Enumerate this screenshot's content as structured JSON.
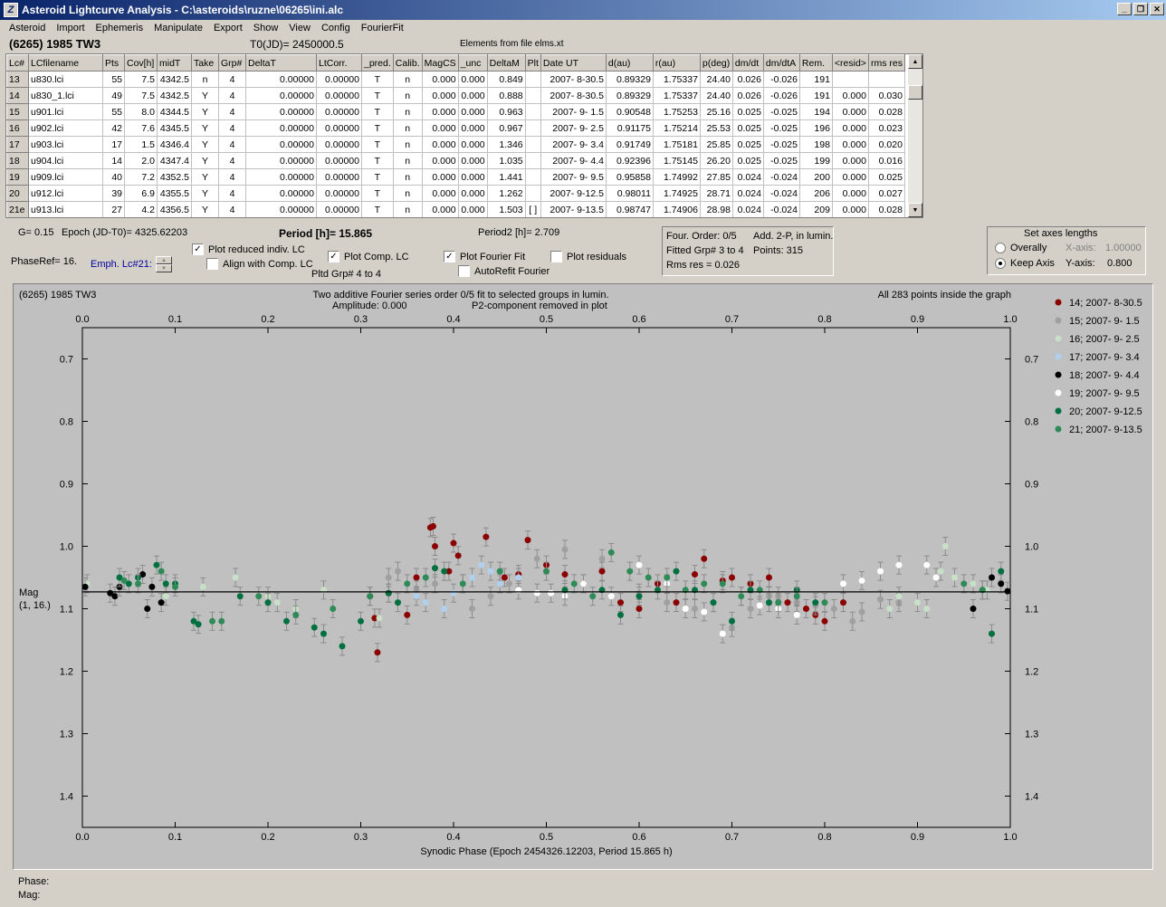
{
  "window": {
    "title": "Asteroid Lightcurve Analysis - C:\\asteroids\\ruzne\\06265\\ini.alc",
    "icon_text": "Z"
  },
  "menu": [
    "Asteroid",
    "Import",
    "Ephemeris",
    "Manipulate",
    "Export",
    "Show",
    "View",
    "Config",
    "FourierFit"
  ],
  "header": {
    "object": "(6265) 1985 TW3",
    "t0": "T0(JD)= 2450000.5",
    "elements": "Elements from file elms.xt"
  },
  "table": {
    "columns": [
      "Lc#",
      "LCfilename",
      "Pts",
      "Cov[h]",
      "midT",
      "Take",
      "Grp#",
      "DeltaT",
      "LtCorr.",
      "_pred.",
      "Calib.",
      "MagCS",
      "_unc",
      "DeltaM",
      "Plt",
      "Date UT",
      "d(au)",
      "r(au)",
      "p(deg)",
      "dm/dt",
      "dm/dtA",
      "Rem.",
      "<resid>",
      "rms res"
    ],
    "rows": [
      [
        "13",
        "u830.lci",
        "55",
        "7.5",
        "4342.5",
        "n",
        "4",
        "0.00000",
        "0.00000",
        "T",
        "n",
        "0.000",
        "0.000",
        "0.849",
        "",
        "2007- 8-30.5",
        "0.89329",
        "1.75337",
        "24.40",
        "0.026",
        "-0.026",
        "191",
        "",
        ""
      ],
      [
        "14",
        "u830_1.lci",
        "49",
        "7.5",
        "4342.5",
        "Y",
        "4",
        "0.00000",
        "0.00000",
        "T",
        "n",
        "0.000",
        "0.000",
        "0.888",
        "",
        "2007- 8-30.5",
        "0.89329",
        "1.75337",
        "24.40",
        "0.026",
        "-0.026",
        "191",
        "0.000",
        "0.030"
      ],
      [
        "15",
        "u901.lci",
        "55",
        "8.0",
        "4344.5",
        "Y",
        "4",
        "0.00000",
        "0.00000",
        "T",
        "n",
        "0.000",
        "0.000",
        "0.963",
        "",
        "2007- 9- 1.5",
        "0.90548",
        "1.75253",
        "25.16",
        "0.025",
        "-0.025",
        "194",
        "0.000",
        "0.028"
      ],
      [
        "16",
        "u902.lci",
        "42",
        "7.6",
        "4345.5",
        "Y",
        "4",
        "0.00000",
        "0.00000",
        "T",
        "n",
        "0.000",
        "0.000",
        "0.967",
        "",
        "2007- 9- 2.5",
        "0.91175",
        "1.75214",
        "25.53",
        "0.025",
        "-0.025",
        "196",
        "0.000",
        "0.023"
      ],
      [
        "17",
        "u903.lci",
        "17",
        "1.5",
        "4346.4",
        "Y",
        "4",
        "0.00000",
        "0.00000",
        "T",
        "n",
        "0.000",
        "0.000",
        "1.346",
        "",
        "2007- 9- 3.4",
        "0.91749",
        "1.75181",
        "25.85",
        "0.025",
        "-0.025",
        "198",
        "0.000",
        "0.020"
      ],
      [
        "18",
        "u904.lci",
        "14",
        "2.0",
        "4347.4",
        "Y",
        "4",
        "0.00000",
        "0.00000",
        "T",
        "n",
        "0.000",
        "0.000",
        "1.035",
        "",
        "2007- 9- 4.4",
        "0.92396",
        "1.75145",
        "26.20",
        "0.025",
        "-0.025",
        "199",
        "0.000",
        "0.016"
      ],
      [
        "19",
        "u909.lci",
        "40",
        "7.2",
        "4352.5",
        "Y",
        "4",
        "0.00000",
        "0.00000",
        "T",
        "n",
        "0.000",
        "0.000",
        "1.441",
        "",
        "2007- 9- 9.5",
        "0.95858",
        "1.74992",
        "27.85",
        "0.024",
        "-0.024",
        "200",
        "0.000",
        "0.025"
      ],
      [
        "20",
        "u912.lci",
        "39",
        "6.9",
        "4355.5",
        "Y",
        "4",
        "0.00000",
        "0.00000",
        "T",
        "n",
        "0.000",
        "0.000",
        "1.262",
        "",
        "2007- 9-12.5",
        "0.98011",
        "1.74925",
        "28.71",
        "0.024",
        "-0.024",
        "206",
        "0.000",
        "0.027"
      ],
      [
        "21e",
        "u913.lci",
        "27",
        "4.2",
        "4356.5",
        "Y",
        "4",
        "0.00000",
        "0.00000",
        "T",
        "n",
        "0.000",
        "0.000",
        "1.503",
        "[ ]",
        "2007- 9-13.5",
        "0.98747",
        "1.74906",
        "28.98",
        "0.024",
        "-0.024",
        "209",
        "0.000",
        "0.028"
      ]
    ]
  },
  "info": {
    "g": "G= 0.15",
    "epoch": "Epoch (JD-T0)= 4325.62203",
    "period": "Period [h]= 15.865",
    "period2": "Period2 [h]= 2.709",
    "phase_ref": "PhaseRef= 16.",
    "emph": "Emph. Lc#21:",
    "pltd_grp": "Pltd Grp#  4  to   4"
  },
  "checks": {
    "plot_reduced": {
      "label": "Plot reduced indiv. LC",
      "checked": true
    },
    "align_comp": {
      "label": "Align with Comp. LC",
      "checked": false
    },
    "plot_comp": {
      "label": "Plot Comp. LC",
      "checked": true
    },
    "plot_fourier": {
      "label": "Plot Fourier Fit",
      "checked": true
    },
    "plot_resid": {
      "label": "Plot residuals",
      "checked": false
    },
    "autorefit": {
      "label": "AutoRefit Fourier",
      "checked": false
    }
  },
  "fourier_panel": {
    "order": "Four. Order:  0/5",
    "add": "Add. 2-P, in lumin.",
    "fitted": "Fitted Grp# 3 to 4",
    "points": "Points: 315",
    "rms": "Rms res     = 0.026"
  },
  "axes_panel": {
    "title": "Set axes lengths",
    "overally": "Overally",
    "keep": "Keep Axis",
    "x_label": "X-axis:",
    "x_value": "1.00000",
    "y_label": "Y-axis:",
    "y_value": "0.800",
    "selected": "keep"
  },
  "plot": {
    "object": "(6265) 1985 TW3",
    "line1": "Two additive Fourier series order 0/5 fit to selected groups in lumin.",
    "amplitude": "Amplitude: 0.000",
    "p2": "P2-component removed in plot",
    "inside": "All 283 points inside the graph",
    "ylabel": "Mag",
    "ylabel2": "(1, 16.)",
    "xlabel": "Synodic Phase (Epoch 2454326.12203, Period 15.865 h)"
  },
  "status": {
    "phase": "Phase:",
    "mag": "Mag:"
  },
  "chart_data": {
    "type": "scatter",
    "xlabel": "Synodic Phase (Epoch 2454326.12203, Period 15.865 h)",
    "ylabel": "Mag",
    "xlim": [
      0.0,
      1.0
    ],
    "ylim": [
      1.45,
      0.65
    ],
    "x_ticks": [
      "0.0",
      "0.1",
      "0.2",
      "0.3",
      "0.4",
      "0.5",
      "0.6",
      "0.7",
      "0.8",
      "0.9",
      "1.0"
    ],
    "y_ticks": [
      "0.7",
      "0.8",
      "0.9",
      "1.0",
      "1.1",
      "1.2",
      "1.3",
      "1.4"
    ],
    "fit_line_mag": 1.073,
    "legend_position": "right",
    "series": [
      {
        "name": "14; 2007- 8-30.5",
        "color": "#8b0000",
        "points": [
          [
            0.31,
            1.08
          ],
          [
            0.315,
            1.115
          ],
          [
            0.318,
            1.17
          ],
          [
            0.33,
            1.075
          ],
          [
            0.35,
            1.11
          ],
          [
            0.36,
            1.05
          ],
          [
            0.375,
            0.97
          ],
          [
            0.378,
            0.968
          ],
          [
            0.38,
            1.0
          ],
          [
            0.395,
            1.04
          ],
          [
            0.4,
            0.995
          ],
          [
            0.405,
            1.015
          ],
          [
            0.435,
            0.985
          ],
          [
            0.455,
            1.05
          ],
          [
            0.47,
            1.045
          ],
          [
            0.48,
            0.99
          ],
          [
            0.5,
            1.03
          ],
          [
            0.52,
            1.045
          ],
          [
            0.54,
            1.06
          ],
          [
            0.56,
            1.04
          ],
          [
            0.58,
            1.09
          ],
          [
            0.6,
            1.1
          ],
          [
            0.62,
            1.06
          ],
          [
            0.64,
            1.09
          ],
          [
            0.66,
            1.045
          ],
          [
            0.67,
            1.02
          ],
          [
            0.69,
            1.055
          ],
          [
            0.7,
            1.05
          ],
          [
            0.72,
            1.06
          ],
          [
            0.74,
            1.05
          ],
          [
            0.76,
            1.09
          ],
          [
            0.78,
            1.1
          ],
          [
            0.79,
            1.11
          ],
          [
            0.8,
            1.12
          ],
          [
            0.82,
            1.09
          ]
        ]
      },
      {
        "name": "15; 2007- 9- 1.5",
        "color": "#a0a0a0",
        "points": [
          [
            0.33,
            1.05
          ],
          [
            0.34,
            1.04
          ],
          [
            0.36,
            1.07
          ],
          [
            0.38,
            1.06
          ],
          [
            0.42,
            1.1
          ],
          [
            0.44,
            1.08
          ],
          [
            0.46,
            1.06
          ],
          [
            0.49,
            1.02
          ],
          [
            0.52,
            1.005
          ],
          [
            0.56,
            1.02
          ],
          [
            0.6,
            1.075
          ],
          [
            0.63,
            1.09
          ],
          [
            0.66,
            1.1
          ],
          [
            0.68,
            1.09
          ],
          [
            0.7,
            1.13
          ],
          [
            0.72,
            1.1
          ],
          [
            0.74,
            1.08
          ],
          [
            0.75,
            1.08
          ],
          [
            0.77,
            1.09
          ],
          [
            0.79,
            1.095
          ],
          [
            0.81,
            1.1
          ],
          [
            0.83,
            1.12
          ],
          [
            0.84,
            1.105
          ],
          [
            0.86,
            1.085
          ],
          [
            0.88,
            1.09
          ]
        ]
      },
      {
        "name": "16; 2007- 9- 2.5",
        "color": "#c8e0c8",
        "points": [
          [
            0.005,
            1.06
          ],
          [
            0.09,
            1.08
          ],
          [
            0.13,
            1.065
          ],
          [
            0.165,
            1.05
          ],
          [
            0.2,
            1.08
          ],
          [
            0.21,
            1.09
          ],
          [
            0.23,
            1.1
          ],
          [
            0.26,
            1.07
          ],
          [
            0.32,
            1.115
          ],
          [
            0.87,
            1.1
          ],
          [
            0.88,
            1.08
          ],
          [
            0.9,
            1.09
          ],
          [
            0.91,
            1.1
          ],
          [
            0.925,
            1.04
          ],
          [
            0.93,
            1.0
          ],
          [
            0.94,
            1.05
          ],
          [
            0.96,
            1.06
          ],
          [
            0.975,
            1.07
          ]
        ]
      },
      {
        "name": "17; 2007- 9- 3.4",
        "color": "#b0d0ee",
        "points": [
          [
            0.36,
            1.08
          ],
          [
            0.37,
            1.09
          ],
          [
            0.39,
            1.1
          ],
          [
            0.4,
            1.075
          ],
          [
            0.41,
            1.06
          ],
          [
            0.42,
            1.05
          ],
          [
            0.43,
            1.03
          ],
          [
            0.44,
            1.04
          ],
          [
            0.45,
            1.06
          ],
          [
            0.47,
            1.05
          ]
        ]
      },
      {
        "name": "18; 2007- 9- 4.4",
        "color": "#000000",
        "points": [
          [
            0.003,
            1.065
          ],
          [
            0.03,
            1.075
          ],
          [
            0.035,
            1.08
          ],
          [
            0.04,
            1.065
          ],
          [
            0.065,
            1.045
          ],
          [
            0.07,
            1.1
          ],
          [
            0.075,
            1.065
          ],
          [
            0.085,
            1.09
          ],
          [
            0.96,
            1.1
          ],
          [
            0.97,
            1.07
          ],
          [
            0.98,
            1.05
          ],
          [
            0.99,
            1.06
          ],
          [
            0.997,
            1.072
          ]
        ]
      },
      {
        "name": "19; 2007- 9- 9.5",
        "color": "#ffffff",
        "points": [
          [
            0.47,
            1.07
          ],
          [
            0.49,
            1.075
          ],
          [
            0.505,
            1.075
          ],
          [
            0.52,
            1.08
          ],
          [
            0.54,
            1.06
          ],
          [
            0.57,
            1.08
          ],
          [
            0.6,
            1.03
          ],
          [
            0.63,
            1.06
          ],
          [
            0.65,
            1.1
          ],
          [
            0.67,
            1.105
          ],
          [
            0.69,
            1.14
          ],
          [
            0.71,
            1.08
          ],
          [
            0.73,
            1.095
          ],
          [
            0.75,
            1.1
          ],
          [
            0.77,
            1.11
          ],
          [
            0.82,
            1.06
          ],
          [
            0.84,
            1.055
          ],
          [
            0.86,
            1.04
          ],
          [
            0.88,
            1.03
          ],
          [
            0.91,
            1.03
          ],
          [
            0.92,
            1.05
          ]
        ]
      },
      {
        "name": "20; 2007- 9-12.5",
        "color": "#007040",
        "points": [
          [
            0.04,
            1.05
          ],
          [
            0.05,
            1.06
          ],
          [
            0.06,
            1.05
          ],
          [
            0.08,
            1.03
          ],
          [
            0.09,
            1.06
          ],
          [
            0.1,
            1.06
          ],
          [
            0.12,
            1.12
          ],
          [
            0.125,
            1.125
          ],
          [
            0.17,
            1.08
          ],
          [
            0.2,
            1.09
          ],
          [
            0.22,
            1.12
          ],
          [
            0.25,
            1.13
          ],
          [
            0.26,
            1.14
          ],
          [
            0.28,
            1.16
          ],
          [
            0.3,
            1.12
          ],
          [
            0.33,
            1.075
          ],
          [
            0.34,
            1.09
          ],
          [
            0.38,
            1.035
          ],
          [
            0.39,
            1.04
          ],
          [
            0.52,
            1.07
          ],
          [
            0.56,
            1.07
          ],
          [
            0.58,
            1.11
          ],
          [
            0.6,
            1.08
          ],
          [
            0.62,
            1.07
          ],
          [
            0.64,
            1.04
          ],
          [
            0.66,
            1.07
          ],
          [
            0.68,
            1.09
          ],
          [
            0.7,
            1.12
          ],
          [
            0.72,
            1.07
          ],
          [
            0.74,
            1.09
          ],
          [
            0.77,
            1.07
          ],
          [
            0.79,
            1.09
          ],
          [
            0.98,
            1.14
          ],
          [
            0.99,
            1.04
          ]
        ]
      },
      {
        "name": "21; 2007- 9-13.5",
        "color": "#2e8b57",
        "points": [
          [
            0.045,
            1.055
          ],
          [
            0.06,
            1.06
          ],
          [
            0.085,
            1.04
          ],
          [
            0.1,
            1.065
          ],
          [
            0.14,
            1.12
          ],
          [
            0.15,
            1.12
          ],
          [
            0.19,
            1.08
          ],
          [
            0.23,
            1.11
          ],
          [
            0.27,
            1.1
          ],
          [
            0.31,
            1.08
          ],
          [
            0.35,
            1.06
          ],
          [
            0.37,
            1.05
          ],
          [
            0.41,
            1.06
          ],
          [
            0.45,
            1.04
          ],
          [
            0.5,
            1.04
          ],
          [
            0.53,
            1.06
          ],
          [
            0.55,
            1.08
          ],
          [
            0.57,
            1.01
          ],
          [
            0.59,
            1.04
          ],
          [
            0.61,
            1.05
          ],
          [
            0.63,
            1.05
          ],
          [
            0.65,
            1.07
          ],
          [
            0.67,
            1.06
          ],
          [
            0.69,
            1.06
          ],
          [
            0.71,
            1.08
          ],
          [
            0.73,
            1.07
          ],
          [
            0.75,
            1.09
          ],
          [
            0.77,
            1.08
          ],
          [
            0.8,
            1.09
          ],
          [
            0.95,
            1.06
          ],
          [
            0.97,
            1.07
          ]
        ]
      }
    ]
  }
}
